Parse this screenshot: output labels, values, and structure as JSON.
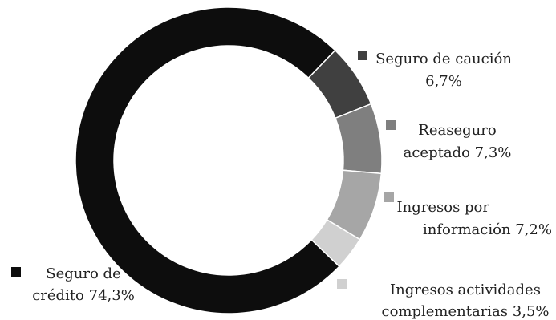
{
  "chart_data": {
    "type": "pie",
    "donut": true,
    "title": "",
    "legend_placement": "labels-beside-slices",
    "slices": [
      {
        "label_line1": "Seguro de caución",
        "label_line2": "6,7%",
        "value": 6.7,
        "color": "#404040"
      },
      {
        "label_line1": "Reaseguro",
        "label_line2": "aceptado 7,3%",
        "value": 7.3,
        "color": "#7f7f7f"
      },
      {
        "label_line1": "Ingresos por",
        "label_line2": "información 7,2%",
        "value": 7.2,
        "color": "#a6a6a6"
      },
      {
        "label_line1": "Ingresos actividades",
        "label_line2": "complementarias  3,5%",
        "value": 3.5,
        "color": "#d0d0d0"
      },
      {
        "label_line1": "Seguro de",
        "label_line2": "crédito 74,3%",
        "value": 74.3,
        "color": "#0d0d0d"
      }
    ]
  }
}
